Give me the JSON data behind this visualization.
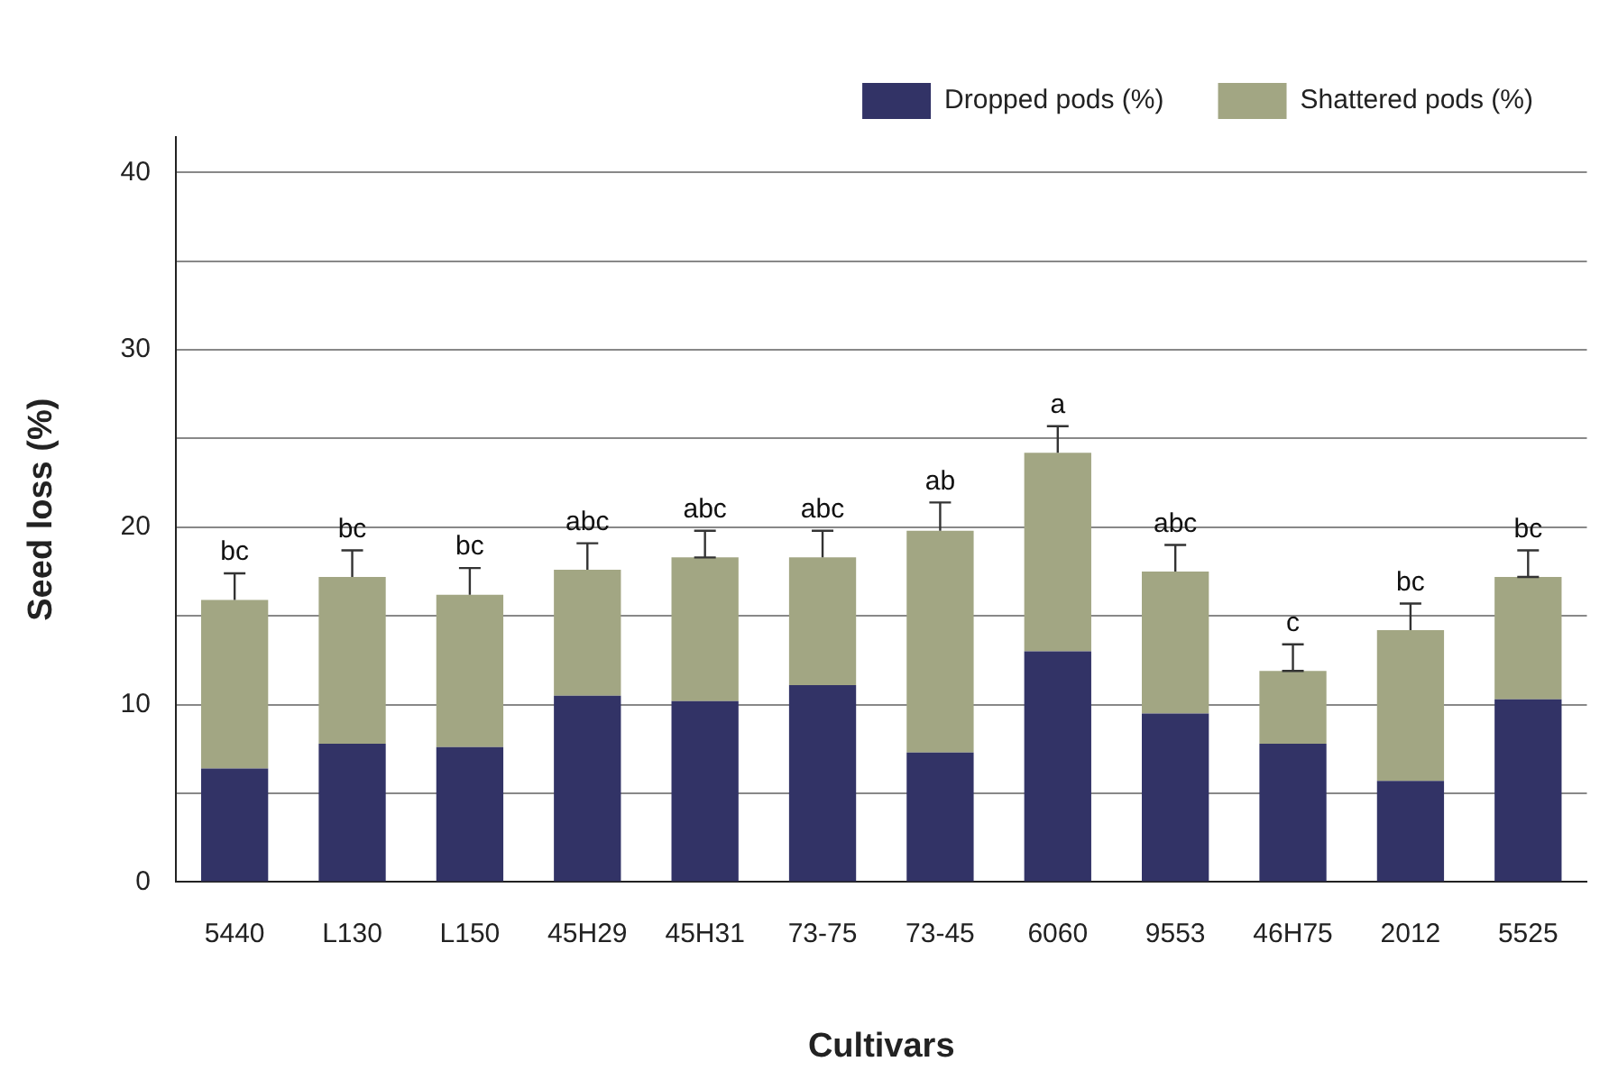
{
  "chart_data": {
    "type": "bar",
    "xlabel": "Cultivars",
    "ylabel": "Seed loss (%)",
    "categories": [
      "5440",
      "L130",
      "L150",
      "45H29",
      "45H31",
      "73-75",
      "73-45",
      "6060",
      "9553",
      "46H75",
      "2012",
      "5525"
    ],
    "stacked": true,
    "series": [
      {
        "name": "Dropped pods (%)",
        "color": "#323366",
        "values": [
          6.4,
          7.8,
          7.6,
          10.5,
          10.2,
          11.1,
          7.3,
          13.0,
          9.5,
          7.8,
          5.7,
          10.3
        ]
      },
      {
        "name": "Shattered pods (%)",
        "color": "#a2a683",
        "values": [
          9.5,
          9.4,
          8.6,
          7.1,
          8.1,
          7.2,
          12.5,
          11.2,
          8.0,
          4.1,
          8.5,
          6.9
        ],
        "errors": [
          [
            15.9,
            17.4
          ],
          [
            17.2,
            18.7
          ],
          [
            16.2,
            17.7
          ],
          [
            17.6,
            19.1
          ],
          [
            18.3,
            19.8
          ],
          [
            18.3,
            19.8
          ],
          [
            19.8,
            21.4
          ],
          [
            24.2,
            25.7
          ],
          [
            17.5,
            19.0
          ],
          [
            11.9,
            13.4
          ],
          [
            14.2,
            15.7
          ],
          [
            17.2,
            18.7
          ]
        ]
      }
    ],
    "ylim": [
      0,
      42
    ],
    "yticks": [
      0,
      {
        "value": 5,
        "label": null
      },
      10,
      {
        "value": 15,
        "label": null
      },
      20,
      {
        "value": 25,
        "label": null
      },
      30,
      {
        "value": 35,
        "label": null
      },
      40
    ],
    "grid": "y",
    "legend": "top right",
    "annotations": [
      "bc",
      "bc",
      "bc",
      "abc",
      "abc",
      "abc",
      "ab",
      "a",
      "abc",
      "c",
      "bc",
      "bc"
    ]
  }
}
